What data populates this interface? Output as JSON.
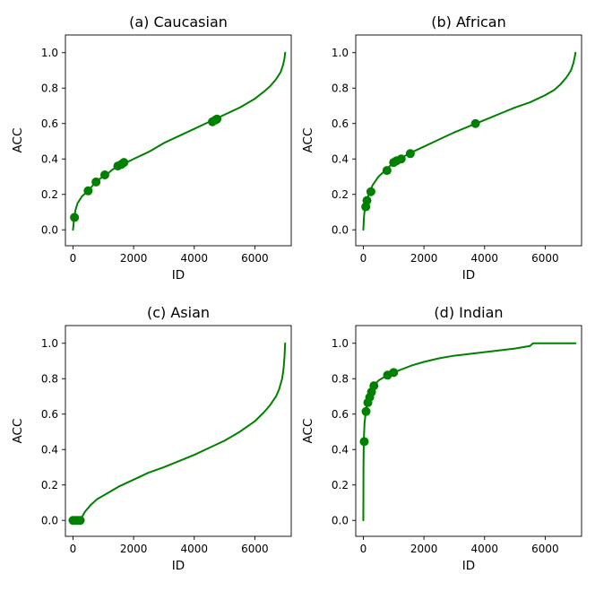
{
  "figure": {
    "line_color": "#008000",
    "marker_color": "#008000"
  },
  "chart_data": [
    {
      "type": "line",
      "title": "(a) Caucasian",
      "xlabel": "ID",
      "ylabel": "ACC",
      "xlim": [
        -250,
        7200
      ],
      "ylim": [
        -0.09,
        1.1
      ],
      "xticks": [
        0,
        2000,
        4000,
        6000
      ],
      "yticks": [
        0.0,
        0.2,
        0.4,
        0.6,
        0.8,
        1.0
      ],
      "xtick_labels": [
        "0",
        "2000",
        "4000",
        "6000"
      ],
      "ytick_labels": [
        "0.0",
        "0.2",
        "0.4",
        "0.6",
        "0.8",
        "1.0"
      ],
      "line": {
        "x": [
          0,
          30,
          80,
          150,
          300,
          500,
          700,
          900,
          1100,
          1300,
          1500,
          1700,
          2000,
          2500,
          3000,
          3500,
          4000,
          4500,
          5000,
          5500,
          6000,
          6300,
          6500,
          6700,
          6850,
          6930,
          6980,
          7000
        ],
        "y": [
          0.0,
          0.05,
          0.11,
          0.15,
          0.19,
          0.22,
          0.26,
          0.29,
          0.31,
          0.34,
          0.36,
          0.375,
          0.4,
          0.44,
          0.49,
          0.53,
          0.57,
          0.61,
          0.65,
          0.69,
          0.74,
          0.78,
          0.81,
          0.85,
          0.89,
          0.93,
          0.97,
          1.0
        ]
      },
      "markers": {
        "x": [
          50,
          500,
          760,
          1050,
          1480,
          1600,
          1680,
          4600,
          4700,
          4750
        ],
        "y": [
          0.07,
          0.22,
          0.27,
          0.31,
          0.36,
          0.37,
          0.38,
          0.61,
          0.62,
          0.625
        ]
      }
    },
    {
      "type": "line",
      "title": "(b) African",
      "xlabel": "ID",
      "ylabel": "ACC",
      "xlim": [
        -250,
        7200
      ],
      "ylim": [
        -0.09,
        1.1
      ],
      "xticks": [
        0,
        2000,
        4000,
        6000
      ],
      "yticks": [
        0.0,
        0.2,
        0.4,
        0.6,
        0.8,
        1.0
      ],
      "xtick_labels": [
        "0",
        "2000",
        "4000",
        "6000"
      ],
      "ytick_labels": [
        "0.0",
        "0.2",
        "0.4",
        "0.6",
        "0.8",
        "1.0"
      ],
      "line": {
        "x": [
          0,
          20,
          50,
          100,
          150,
          200,
          300,
          500,
          750,
          1000,
          1200,
          1500,
          2000,
          2500,
          3000,
          3500,
          4000,
          4500,
          5000,
          5500,
          6000,
          6300,
          6500,
          6700,
          6850,
          6930,
          6980,
          7000
        ],
        "y": [
          0.0,
          0.07,
          0.12,
          0.155,
          0.185,
          0.21,
          0.25,
          0.3,
          0.34,
          0.38,
          0.4,
          0.43,
          0.47,
          0.51,
          0.55,
          0.585,
          0.62,
          0.655,
          0.69,
          0.72,
          0.76,
          0.79,
          0.82,
          0.86,
          0.9,
          0.94,
          0.98,
          1.0
        ]
      },
      "markers": {
        "x": [
          80,
          120,
          250,
          780,
          1000,
          1100,
          1250,
          1550,
          3700
        ],
        "y": [
          0.13,
          0.165,
          0.215,
          0.335,
          0.38,
          0.39,
          0.4,
          0.43,
          0.6
        ]
      }
    },
    {
      "type": "line",
      "title": "(c) Asian",
      "xlabel": "ID",
      "ylabel": "ACC",
      "xlim": [
        -250,
        7200
      ],
      "ylim": [
        -0.09,
        1.1
      ],
      "xticks": [
        0,
        2000,
        4000,
        6000
      ],
      "yticks": [
        0.0,
        0.2,
        0.4,
        0.6,
        0.8,
        1.0
      ],
      "xtick_labels": [
        "0",
        "2000",
        "4000",
        "6000"
      ],
      "ytick_labels": [
        "0.0",
        "0.2",
        "0.4",
        "0.6",
        "0.8",
        "1.0"
      ],
      "line": {
        "x": [
          0,
          250,
          300,
          400,
          600,
          800,
          1000,
          1500,
          2000,
          2500,
          3000,
          3500,
          4000,
          4500,
          5000,
          5500,
          6000,
          6300,
          6500,
          6700,
          6800,
          6900,
          6950,
          6980,
          7000
        ],
        "y": [
          0.0,
          0.0,
          0.02,
          0.05,
          0.09,
          0.12,
          0.14,
          0.19,
          0.23,
          0.27,
          0.3,
          0.335,
          0.37,
          0.41,
          0.45,
          0.5,
          0.56,
          0.61,
          0.65,
          0.7,
          0.74,
          0.8,
          0.86,
          0.93,
          1.0
        ]
      },
      "markers": {
        "x": [
          0,
          80,
          160,
          240
        ],
        "y": [
          0.0,
          0.0,
          0.0,
          0.0
        ]
      }
    },
    {
      "type": "line",
      "title": "(d) Indian",
      "xlabel": "ID",
      "ylabel": "ACC",
      "xlim": [
        -250,
        7200
      ],
      "ylim": [
        -0.09,
        1.1
      ],
      "xticks": [
        0,
        2000,
        4000,
        6000
      ],
      "yticks": [
        0.0,
        0.2,
        0.4,
        0.6,
        0.8,
        1.0
      ],
      "xtick_labels": [
        "0",
        "2000",
        "4000",
        "6000"
      ],
      "ytick_labels": [
        "0.0",
        "0.2",
        "0.4",
        "0.6",
        "0.8",
        "1.0"
      ],
      "line": {
        "x": [
          0,
          5,
          15,
          40,
          80,
          120,
          180,
          250,
          350,
          500,
          700,
          1000,
          1300,
          1600,
          2000,
          2500,
          3000,
          3500,
          4000,
          4500,
          5000,
          5500,
          5600,
          6000,
          7000
        ],
        "y": [
          0.0,
          0.3,
          0.45,
          0.55,
          0.61,
          0.66,
          0.7,
          0.735,
          0.76,
          0.79,
          0.81,
          0.835,
          0.855,
          0.875,
          0.895,
          0.915,
          0.93,
          0.94,
          0.95,
          0.96,
          0.97,
          0.985,
          1.0,
          1.0,
          1.0
        ]
      },
      "markers": {
        "x": [
          30,
          90,
          150,
          210,
          270,
          350,
          800,
          1000
        ],
        "y": [
          0.445,
          0.615,
          0.665,
          0.695,
          0.725,
          0.76,
          0.82,
          0.835
        ]
      }
    }
  ]
}
